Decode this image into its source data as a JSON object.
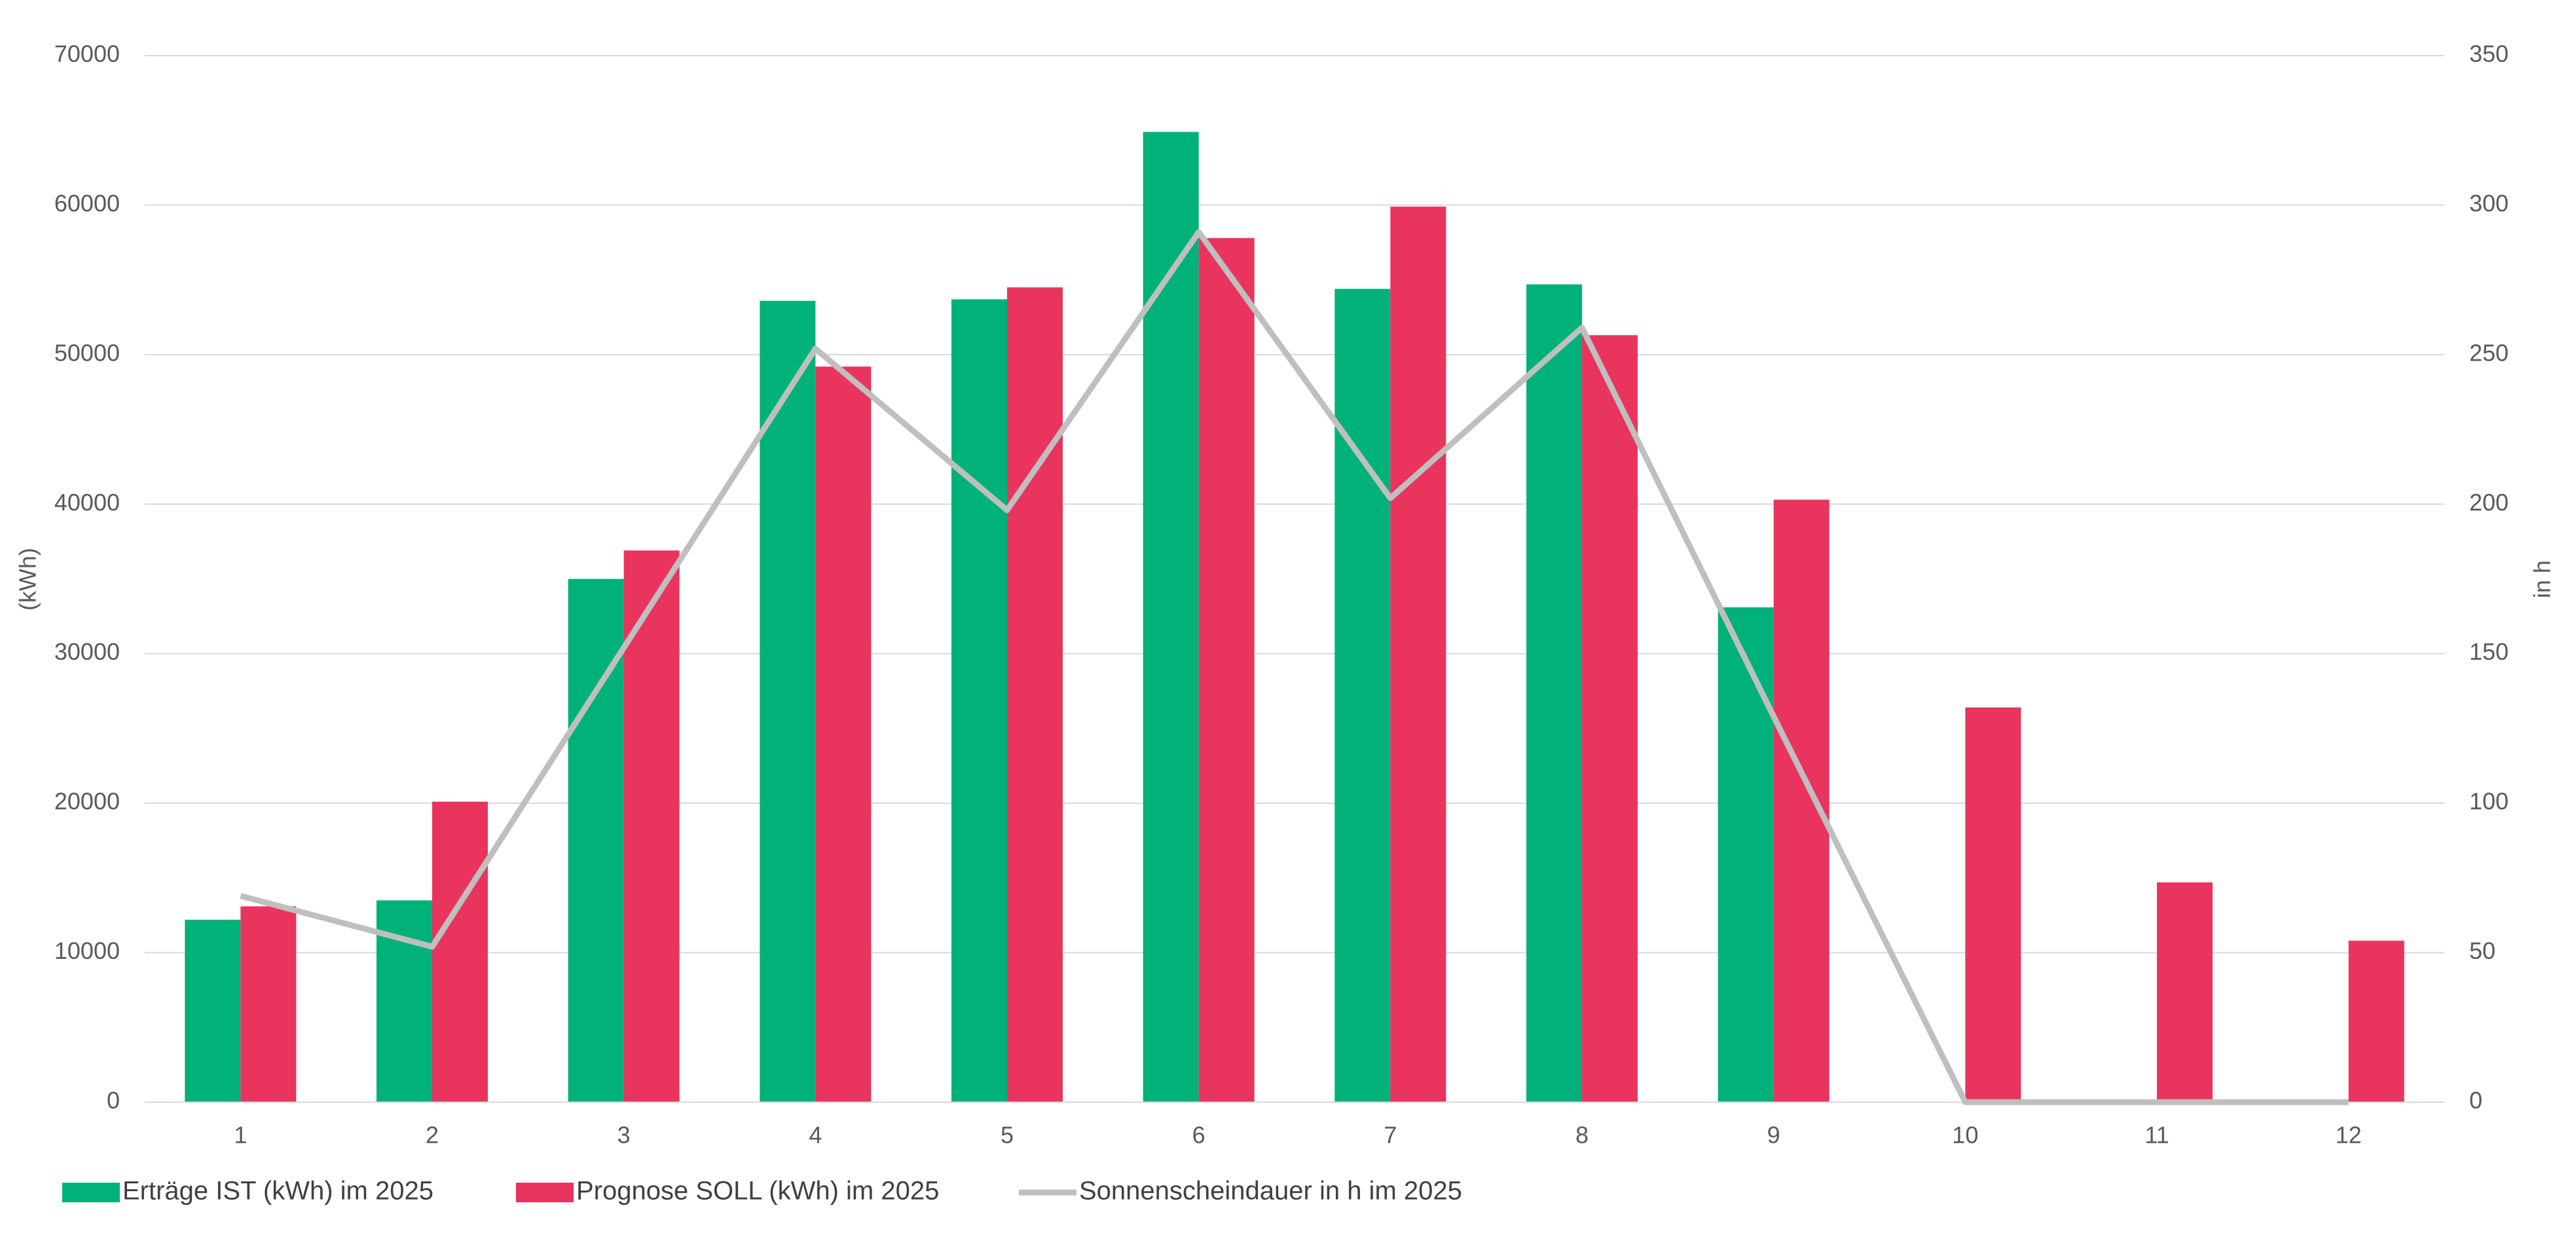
{
  "chart_data": {
    "type": "bar",
    "categories": [
      "1",
      "2",
      "3",
      "4",
      "5",
      "6",
      "7",
      "8",
      "9",
      "10",
      "11",
      "12"
    ],
    "y_label": "(kWh)",
    "y2_label": "in h",
    "ylim": [
      0,
      70000
    ],
    "yticks": [
      0,
      10000,
      20000,
      30000,
      40000,
      50000,
      60000,
      70000
    ],
    "y2lim": [
      0,
      350
    ],
    "y2ticks": [
      0,
      50,
      100,
      150,
      200,
      250,
      300,
      350
    ],
    "grid": true,
    "legend": "bottom",
    "series": [
      {
        "name": "Erträge IST (kWh) im 2025",
        "type": "bar",
        "color": "#00b17a",
        "values": [
          12200,
          13500,
          35000,
          53600,
          53700,
          64900,
          54400,
          54700,
          33100,
          null,
          null,
          null
        ]
      },
      {
        "name": "Prognose SOLL (kWh) im 2025",
        "type": "bar",
        "color": "#e9345e",
        "values": [
          13100,
          20100,
          36900,
          49200,
          54500,
          57800,
          59900,
          51300,
          40300,
          26400,
          14700,
          10800
        ]
      },
      {
        "name": "Sonnenscheindauer in h im 2025",
        "type": "line",
        "axis": "y2",
        "color": "#bfbfbf",
        "values": [
          69,
          52,
          152,
          252,
          198,
          291,
          202,
          259,
          129,
          0,
          0,
          0
        ]
      }
    ]
  }
}
